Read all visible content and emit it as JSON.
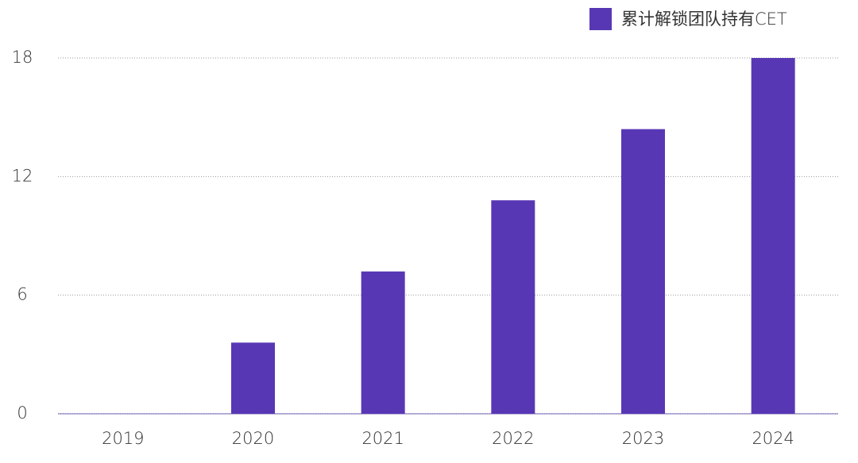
{
  "chart_data": {
    "type": "bar",
    "categories": [
      "2019",
      "2020",
      "2021",
      "2022",
      "2023",
      "2024"
    ],
    "series": [
      {
        "name": "累计解锁团队持有CET",
        "color": "#5837b5",
        "values": [
          0,
          3.6,
          7.2,
          10.8,
          14.4,
          18
        ]
      }
    ],
    "ylim": [
      0,
      18
    ],
    "yticks": [
      0,
      6,
      12,
      18
    ],
    "grid": true,
    "legend": "top-right"
  }
}
